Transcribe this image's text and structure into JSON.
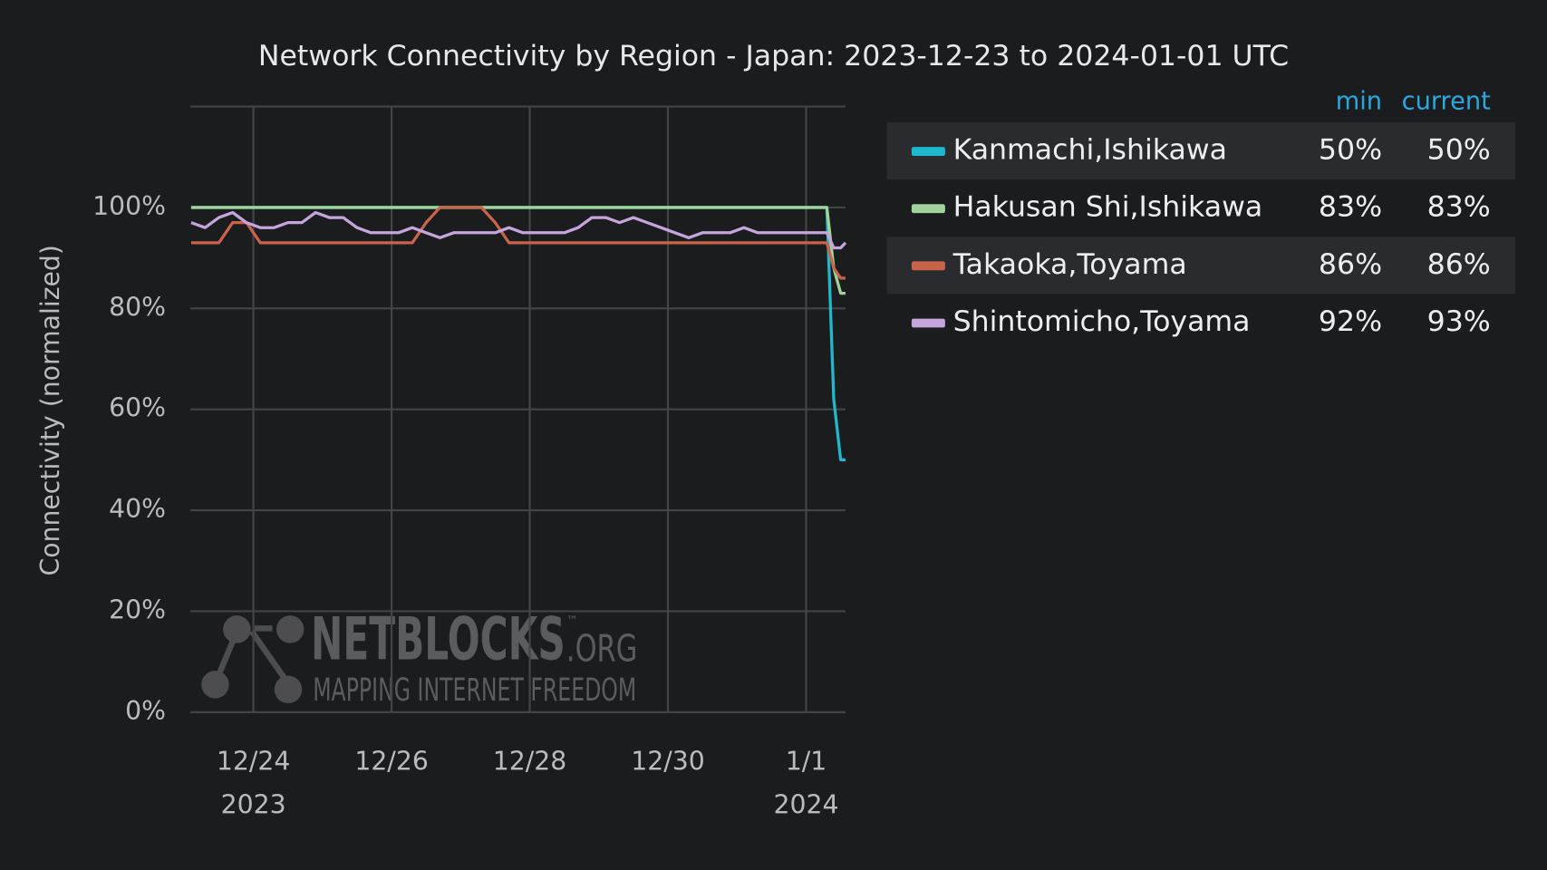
{
  "chart_data": {
    "type": "line",
    "title": "Network Connectivity by Region - Japan: 2023-12-23 to 2024-01-01 UTC",
    "y_label": "Connectivity (normalized)",
    "x": [
      0.1,
      0.3,
      0.5,
      0.7,
      0.9,
      1.1,
      1.3,
      1.5,
      1.7,
      1.9,
      2.1,
      2.3,
      2.5,
      2.7,
      2.9,
      3.1,
      3.3,
      3.5,
      3.7,
      3.9,
      4.1,
      4.3,
      4.5,
      4.7,
      4.9,
      5.1,
      5.3,
      5.5,
      5.7,
      5.9,
      6.1,
      6.3,
      6.5,
      6.7,
      6.9,
      7.1,
      7.3,
      7.5,
      7.7,
      7.9,
      8.1,
      8.3,
      8.5,
      8.7,
      8.9,
      9.1,
      9.3,
      9.4,
      9.5,
      9.57
    ],
    "xlim": [
      0.09,
      9.57
    ],
    "xticks": [
      {
        "value": 1,
        "label": "12/24"
      },
      {
        "value": 3,
        "label": "12/26"
      },
      {
        "value": 5,
        "label": "12/28"
      },
      {
        "value": 7,
        "label": "12/30"
      },
      {
        "value": 9,
        "label": "1/1"
      }
    ],
    "xtick_sublabels": [
      {
        "value": 1,
        "label": "2023"
      },
      {
        "value": 9,
        "label": "2024"
      }
    ],
    "ylim": [
      0,
      120
    ],
    "yticks": [
      {
        "value": 0,
        "label": "0%"
      },
      {
        "value": 20,
        "label": "20%"
      },
      {
        "value": 40,
        "label": "40%"
      },
      {
        "value": 60,
        "label": "60%"
      },
      {
        "value": 80,
        "label": "80%"
      },
      {
        "value": 100,
        "label": "100%"
      }
    ],
    "grid": true,
    "legend_columns": [
      "min",
      "current"
    ],
    "series": [
      {
        "name": "Kanmachi,Ishikawa",
        "color": "#1fb8cd",
        "stats": [
          50,
          50
        ],
        "stat_labels": [
          "50%",
          "50%"
        ],
        "values": [
          100,
          100,
          100,
          100,
          100,
          100,
          100,
          100,
          100,
          100,
          100,
          100,
          100,
          100,
          100,
          100,
          100,
          100,
          100,
          100,
          100,
          100,
          100,
          100,
          100,
          100,
          100,
          100,
          100,
          100,
          100,
          100,
          100,
          100,
          100,
          100,
          100,
          100,
          100,
          100,
          100,
          100,
          100,
          100,
          100,
          100,
          100,
          62,
          50,
          50
        ]
      },
      {
        "name": "Hakusan Shi,Ishikawa",
        "color": "#9fd39a",
        "stats": [
          83,
          83
        ],
        "stat_labels": [
          "83%",
          "83%"
        ],
        "values": [
          100,
          100,
          100,
          100,
          100,
          100,
          100,
          100,
          100,
          100,
          100,
          100,
          100,
          100,
          100,
          100,
          100,
          100,
          100,
          100,
          100,
          100,
          100,
          100,
          100,
          100,
          100,
          100,
          100,
          100,
          100,
          100,
          100,
          100,
          100,
          100,
          100,
          100,
          100,
          100,
          100,
          100,
          100,
          100,
          100,
          100,
          100,
          88,
          83,
          83
        ]
      },
      {
        "name": "Takaoka,Toyama",
        "color": "#c9634a",
        "stats": [
          86,
          86
        ],
        "stat_labels": [
          "86%",
          "86%"
        ],
        "values": [
          93,
          93,
          93,
          97,
          97,
          93,
          93,
          93,
          93,
          93,
          93,
          93,
          93,
          93,
          93,
          93,
          93,
          97,
          100,
          100,
          100,
          100,
          97,
          93,
          93,
          93,
          93,
          93,
          93,
          93,
          93,
          93,
          93,
          93,
          93,
          93,
          93,
          93,
          93,
          93,
          93,
          93,
          93,
          93,
          93,
          93,
          93,
          88,
          86,
          86
        ]
      },
      {
        "name": "Shintomicho,Toyama",
        "color": "#c5a5dc",
        "stats": [
          92,
          93
        ],
        "stat_labels": [
          "92%",
          "93%"
        ],
        "values": [
          97,
          96,
          98,
          99,
          97,
          96,
          96,
          97,
          97,
          99,
          98,
          98,
          96,
          95,
          95,
          95,
          96,
          95,
          94,
          95,
          95,
          95,
          95,
          96,
          95,
          95,
          95,
          95,
          96,
          98,
          98,
          97,
          98,
          97,
          96,
          95,
          94,
          95,
          95,
          95,
          96,
          95,
          95,
          95,
          95,
          95,
          95,
          92,
          92,
          93
        ]
      }
    ],
    "watermark": {
      "name": "NETBLOCKS",
      "suffix": ".ORG",
      "mark": "™",
      "tagline": "MAPPING INTERNET FREEDOM"
    }
  }
}
